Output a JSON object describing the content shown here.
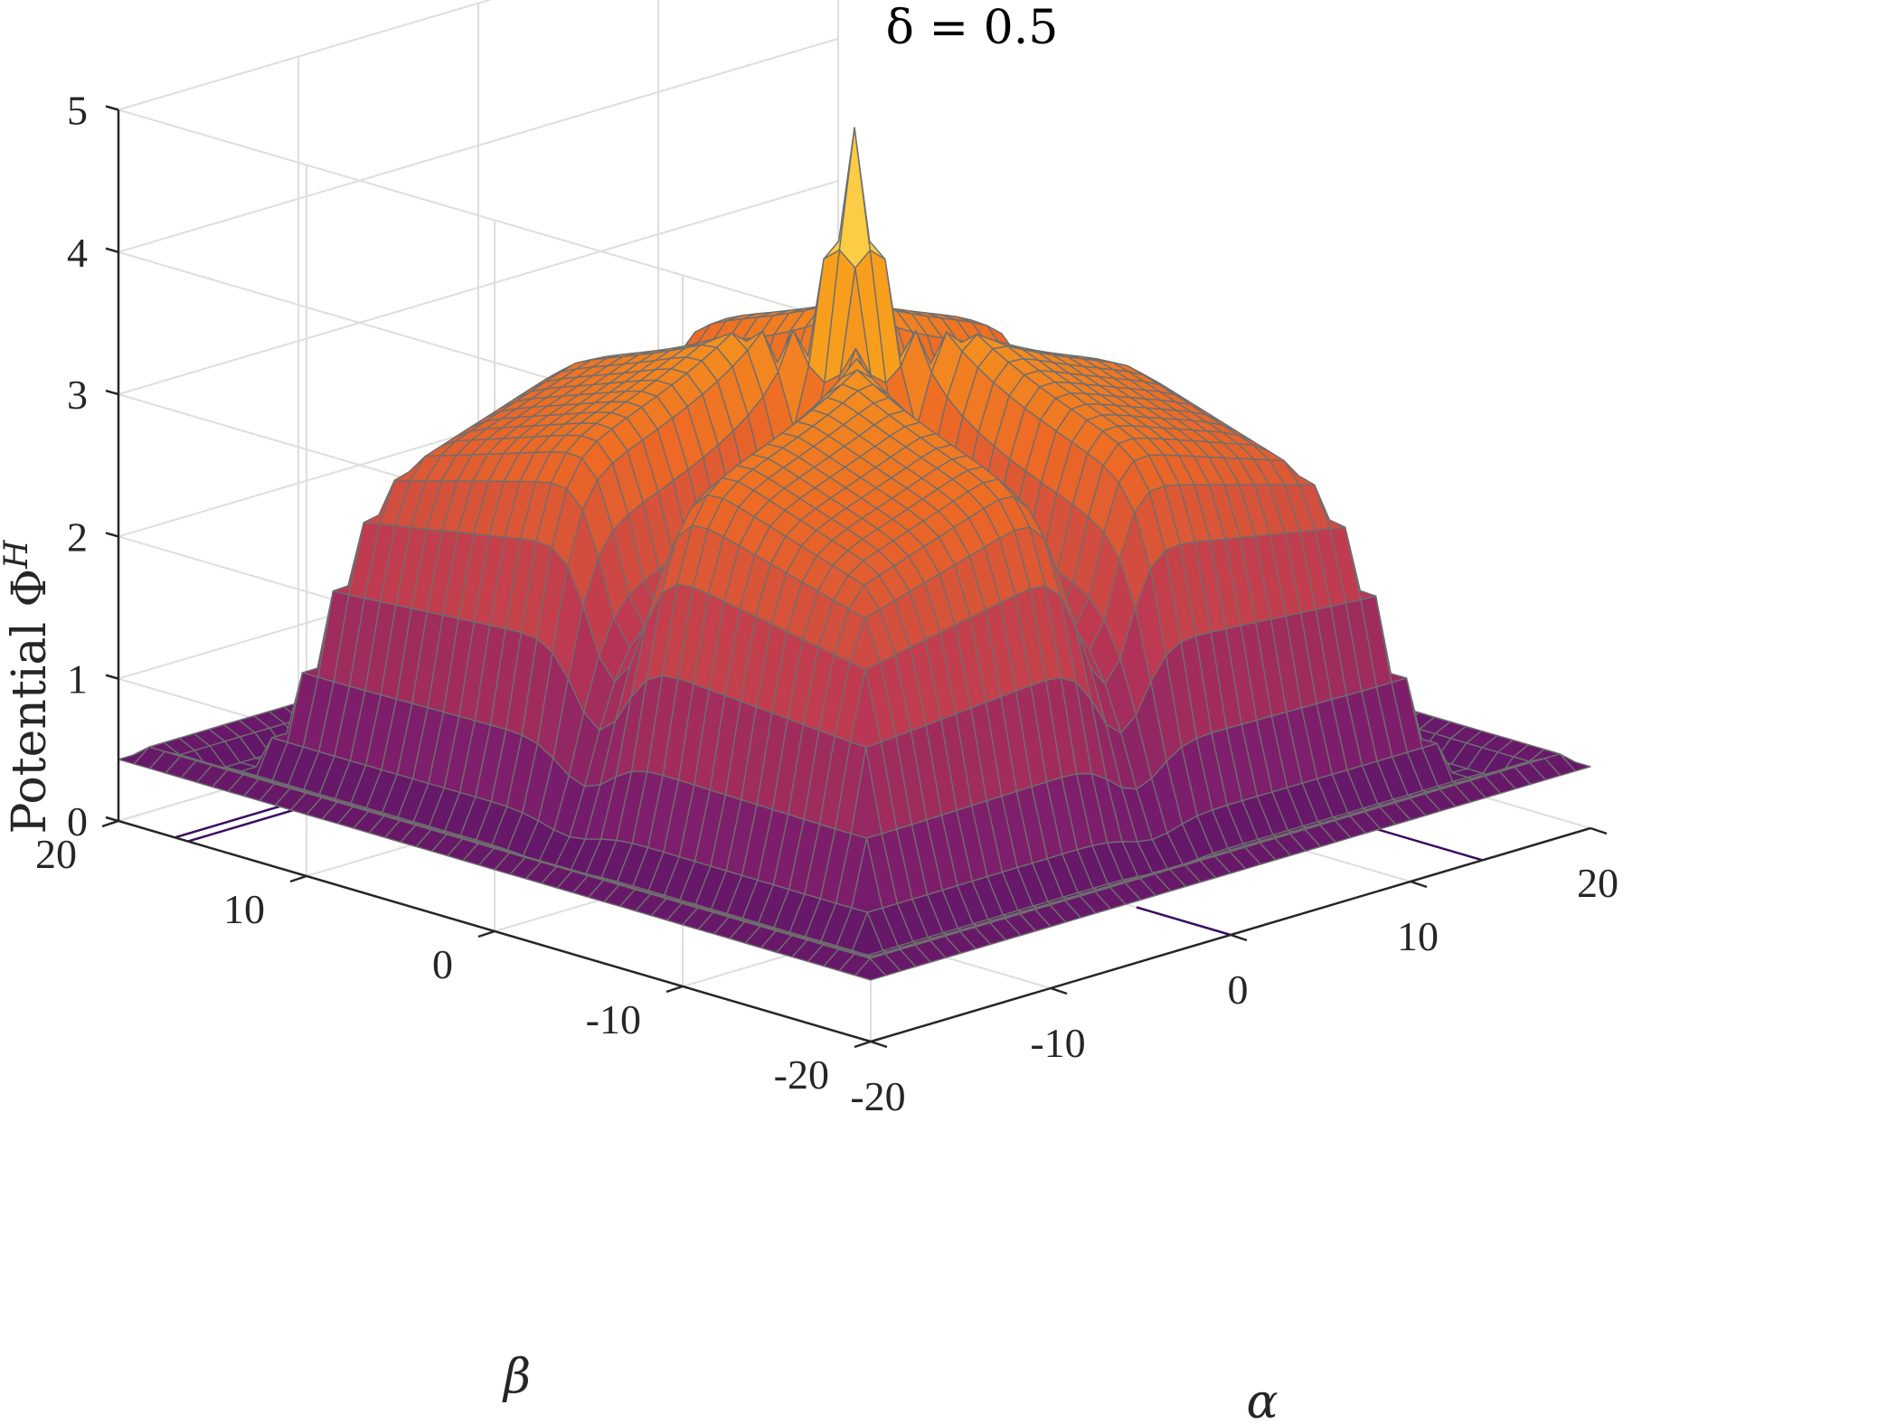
{
  "chart_data": {
    "type": "surface",
    "title": "δ = 0.5",
    "xlabel": "α",
    "ylabel": "β",
    "zlabel": "Potential Φ^H",
    "xlim": [
      -20,
      20
    ],
    "ylim": [
      -20,
      20
    ],
    "zlim": [
      0,
      5
    ],
    "xticks": [
      -20,
      -10,
      0,
      10,
      20
    ],
    "yticks": [
      -20,
      -10,
      0,
      10,
      20
    ],
    "zticks": [
      0,
      1,
      2,
      3,
      4,
      5
    ],
    "xtick_labels": [
      "-20",
      "-10",
      "0",
      "10",
      "20"
    ],
    "ytick_labels": [
      "-20",
      "-10",
      "0",
      "10",
      "20"
    ],
    "ztick_labels": [
      "0",
      "1",
      "2",
      "3",
      "4",
      "5"
    ],
    "grid": true,
    "colormap": "inferno",
    "mesh_edge_color": "#6e6e6e",
    "colormap_stops": [
      "#000004",
      "#320a5e",
      "#781c6d",
      "#bc3754",
      "#ed6925",
      "#fbb61a",
      "#fcffa4"
    ],
    "surface_features": {
      "peak": {
        "alpha": 0,
        "beta": 0,
        "value": 4.9
      },
      "plateau": {
        "alpha_range": [
          -14,
          14
        ],
        "beta_range": [
          -14,
          14
        ],
        "value": 3.7
      },
      "valley_axes": [
        "alpha = 0",
        "beta = 0"
      ],
      "edge_value": 0.4
    },
    "floor_contours": [
      "β ≈ 17",
      "β ≈ 16.5",
      "β ≈ -14",
      "α ≈ 0",
      "α ≈ 14"
    ]
  }
}
